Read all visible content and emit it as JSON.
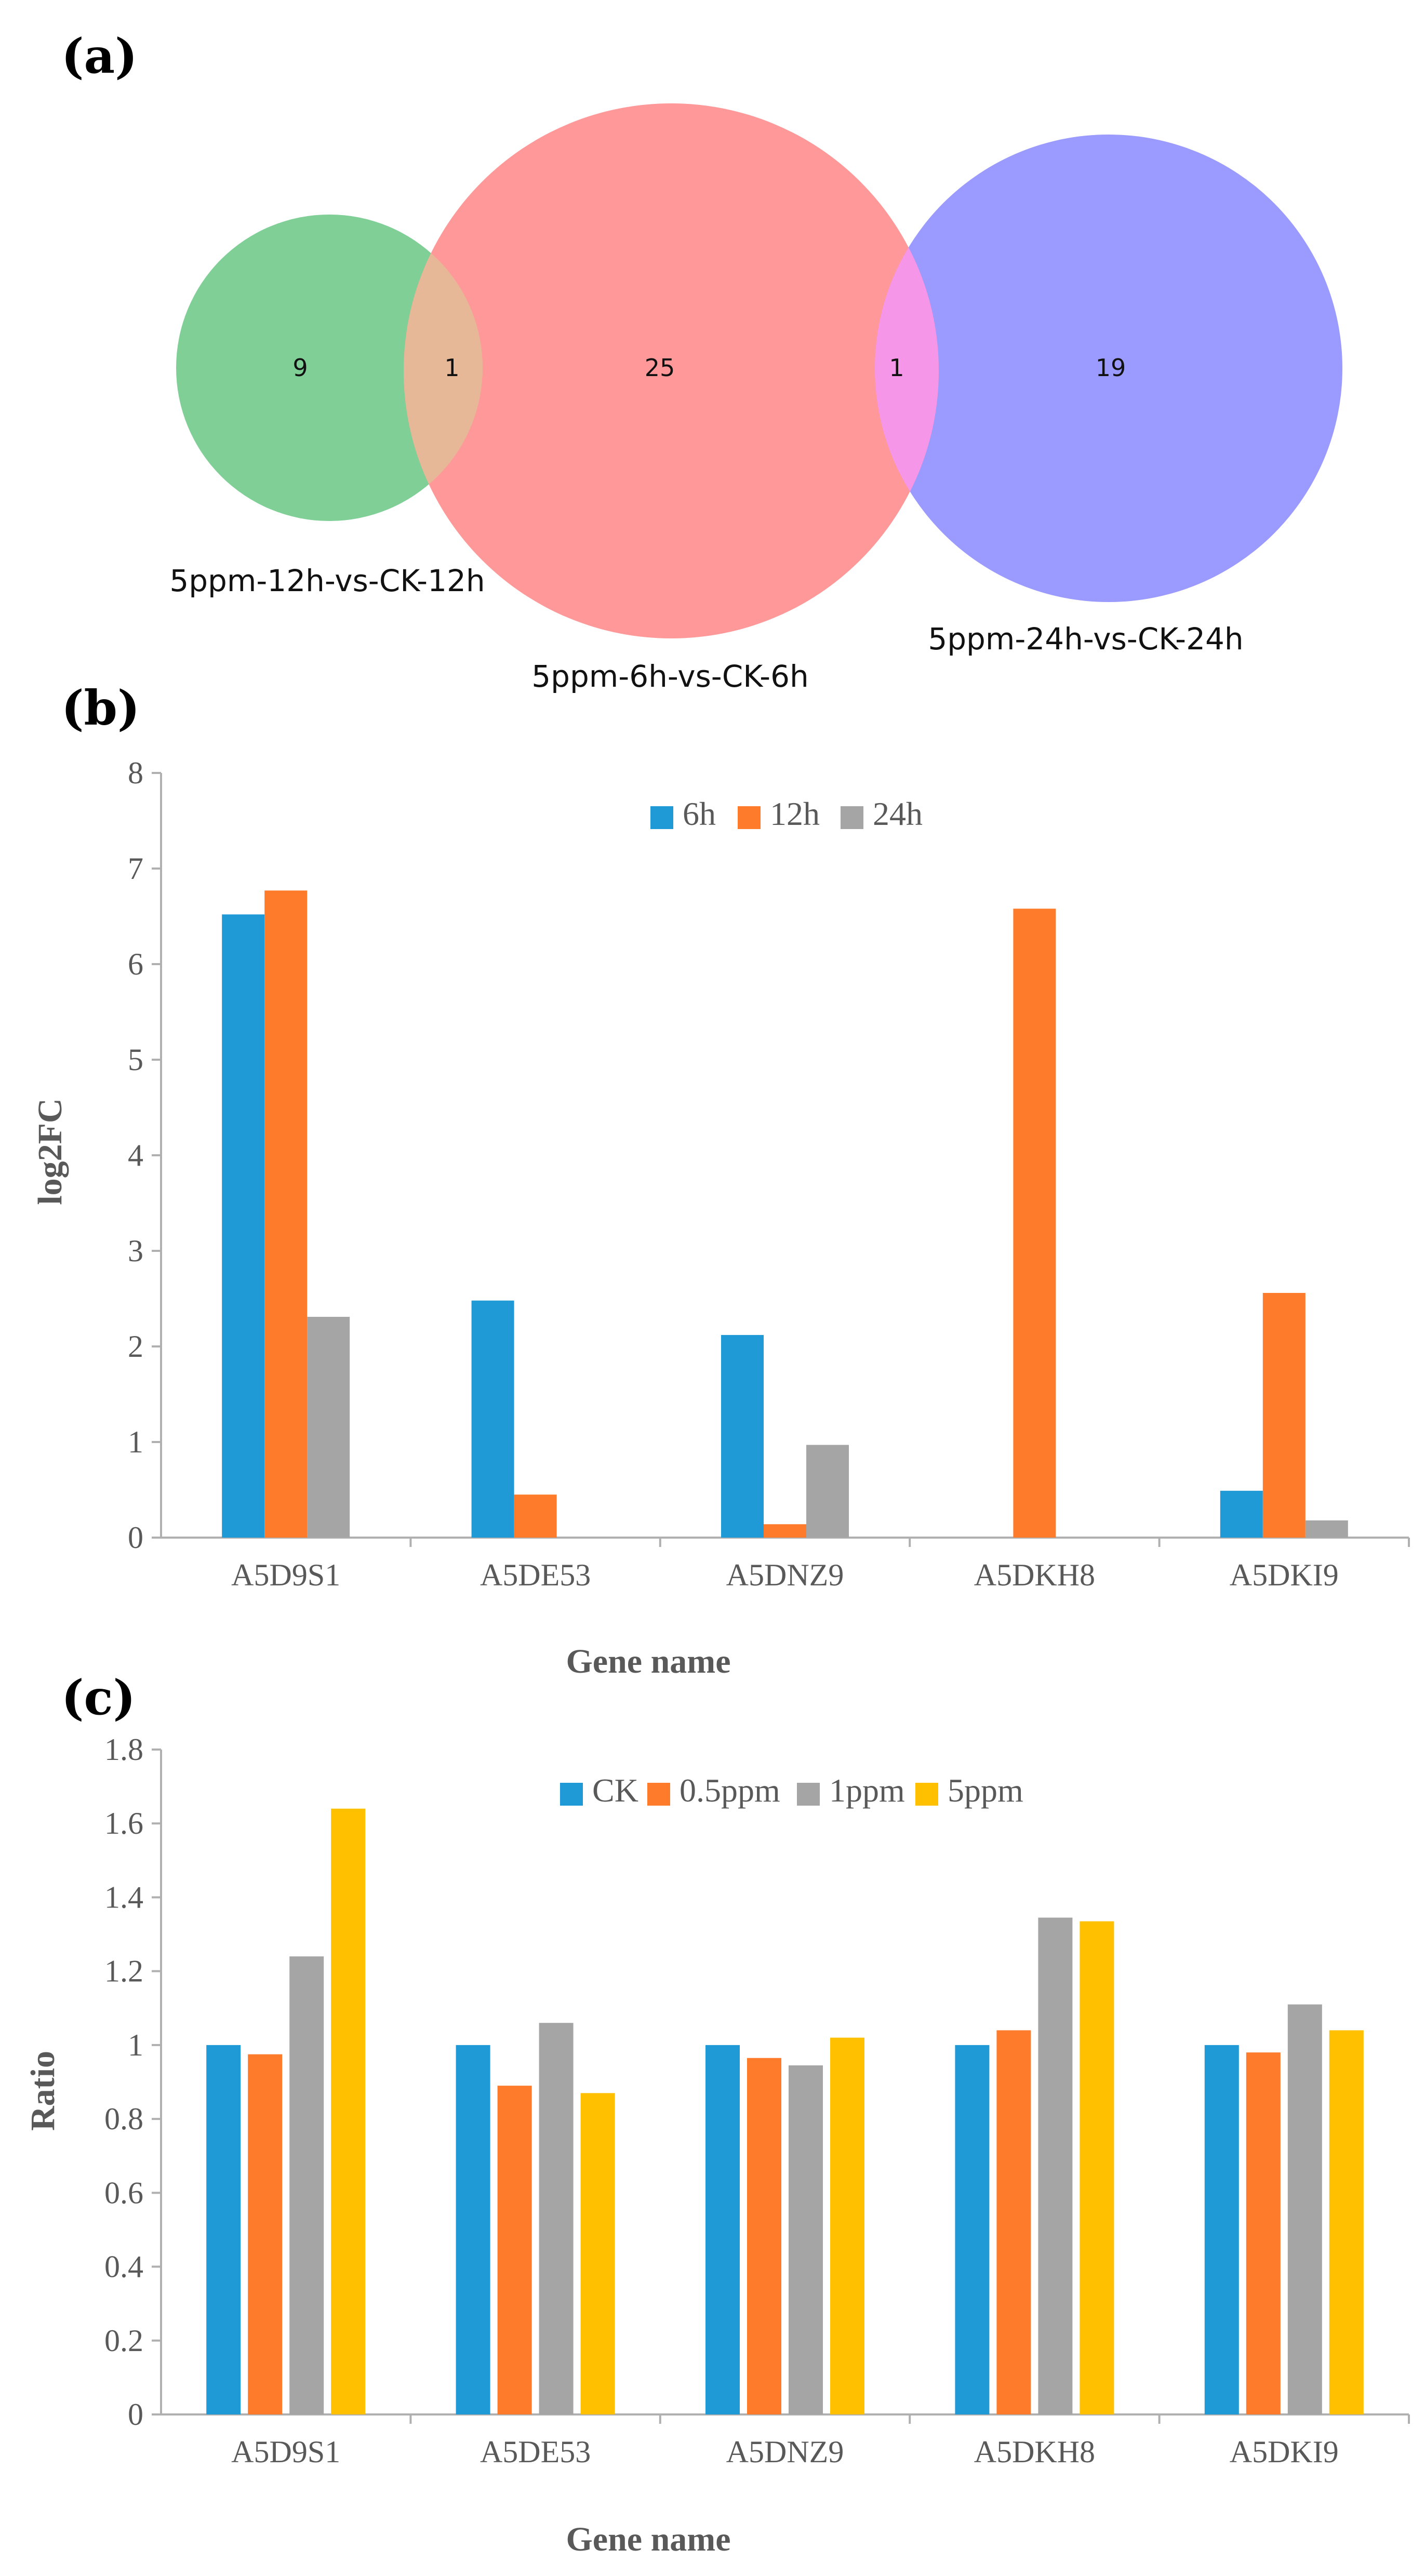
{
  "panels": {
    "a": "(a)",
    "b": "(b)",
    "c": "(c)"
  },
  "venn": {
    "sets": [
      {
        "name": "5ppm-12h-vs-CK-12h",
        "color": "#7fcf97"
      },
      {
        "name": "5ppm-6h-vs-CK-6h",
        "color": "#ff9999"
      },
      {
        "name": "5ppm-24h-vs-CK-24h",
        "color": "#9b9bff"
      }
    ],
    "regions": {
      "only_12h": "9",
      "12h_and_6h": "1",
      "only_6h": "25",
      "6h_and_24h": "1",
      "only_24h": "19"
    },
    "overlap_colors": {
      "12h_and_6h": "#e6b897",
      "6h_and_24h": "#f596e8"
    }
  },
  "chart_data": [
    {
      "type": "bar",
      "panel": "(b)",
      "categories": [
        "A5D9S1",
        "A5DE53",
        "A5DNZ9",
        "A5DKH8",
        "A5DKI9"
      ],
      "series": [
        {
          "name": "6h",
          "color": "#1f9ad6",
          "values": [
            6.52,
            2.48,
            2.12,
            0,
            0.49
          ]
        },
        {
          "name": "12h",
          "color": "#fd7b2b",
          "values": [
            6.77,
            0.45,
            0.14,
            6.58,
            2.56
          ]
        },
        {
          "name": "24h",
          "color": "#a5a5a5",
          "values": [
            2.31,
            0,
            0.97,
            0,
            0.18
          ]
        }
      ],
      "ylim": [
        0,
        8
      ],
      "yticks": [
        "0",
        "1",
        "2",
        "3",
        "4",
        "5",
        "6",
        "7",
        "8"
      ],
      "xlabel": "Gene name",
      "ylabel": "log2FC",
      "legend": "top-center",
      "grid": false
    },
    {
      "type": "bar",
      "panel": "(c)",
      "categories": [
        "A5D9S1",
        "A5DE53",
        "A5DNZ9",
        "A5DKH8",
        "A5DKI9"
      ],
      "series": [
        {
          "name": "CK",
          "color": "#1f9ad6",
          "values": [
            1.0,
            1.0,
            1.0,
            1.0,
            1.0
          ]
        },
        {
          "name": "0.5ppm",
          "color": "#fd7b2b",
          "values": [
            0.975,
            0.89,
            0.965,
            1.04,
            0.98
          ]
        },
        {
          "name": "1ppm",
          "color": "#a5a5a5",
          "values": [
            1.24,
            1.06,
            0.945,
            1.345,
            1.11
          ]
        },
        {
          "name": "5ppm",
          "color": "#ffc000",
          "values": [
            1.64,
            0.87,
            1.02,
            1.335,
            1.04
          ]
        }
      ],
      "ylim": [
        0,
        1.8
      ],
      "yticks": [
        "0",
        "0.2",
        "0.4",
        "0.6",
        "0.8",
        "1",
        "1.2",
        "1.4",
        "1.6",
        "1.8"
      ],
      "xlabel": "Gene name",
      "ylabel": "Ratio",
      "legend": "top-center",
      "grid": false
    }
  ]
}
